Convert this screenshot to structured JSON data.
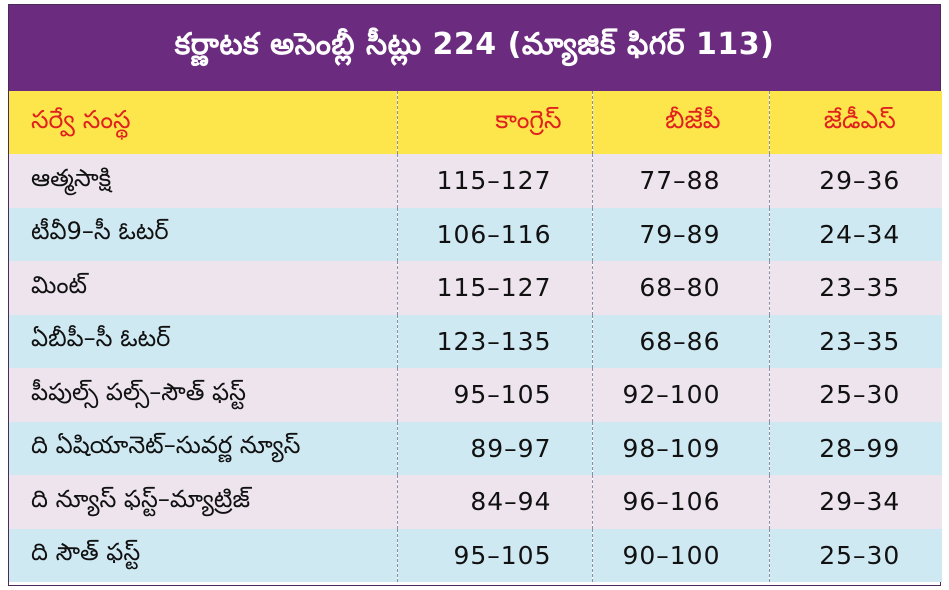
{
  "title": "కర్ణాటక అసెంబ్లీ సీట్లు 224 (మ్యాజిక్ ఫిగర్ 113)",
  "headers": [
    "సర్వే సంస్థ",
    "కాంగ్రెస్",
    "బీజేపీ",
    "జేడీఎస్"
  ],
  "rows": [
    {
      "agency": "ఆత్మసాక్షి",
      "congress": "115–127",
      "bjp": "77–88",
      "jds": "29–36"
    },
    {
      "agency": "టీవీ9–సీ ఓటర్",
      "congress": "106–116",
      "bjp": "79–89",
      "jds": "24–34"
    },
    {
      "agency": "మింట్",
      "congress": "115–127",
      "bjp": "68–80",
      "jds": "23–35"
    },
    {
      "agency": "ఏబీపీ–సీ ఓటర్",
      "congress": "123–135",
      "bjp": "68–86",
      "jds": "23–35"
    },
    {
      "agency": "పీపుల్స్ పల్స్–సౌత్ ఫస్ట్",
      "congress": "95–105",
      "bjp": "92–100",
      "jds": "25–30"
    },
    {
      "agency": "ది ఏషియానెట్–సువర్ణ న్యూస్",
      "congress": "89–97",
      "bjp": "98–109",
      "jds": "28–99"
    },
    {
      "agency": "ది న్యూస్ ఫస్ట్–మ్యాట్రిజ్",
      "congress": "84–94",
      "bjp": "96–106",
      "jds": "29–34"
    },
    {
      "agency": "ది సౌత్ ఫస్ట్",
      "congress": "95–105",
      "bjp": "90–100",
      "jds": "25–30"
    }
  ],
  "colors": {
    "title_bg": "#6b2c7f",
    "header_bg": "#fde64b",
    "header_text": "#e0211d",
    "row_odd": "#ede4ee",
    "row_even": "#cfe9f3"
  }
}
